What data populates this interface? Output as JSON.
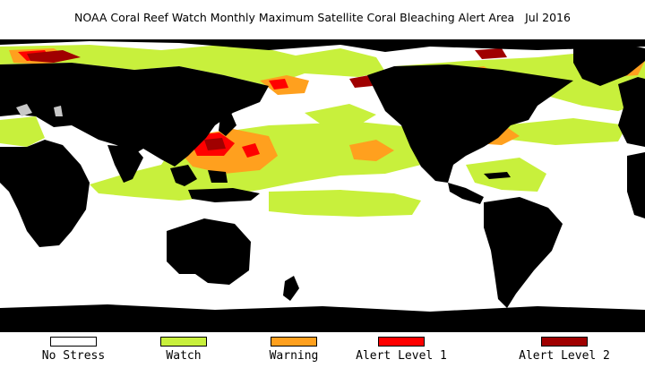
{
  "map": {
    "title": "NOAA Coral Reef Watch Monthly Maximum Satellite Coral Bleaching Alert Area",
    "period": "Jul 2016",
    "colors": {
      "ocean": "#ffffff",
      "land": "#000000",
      "ice": "#c8c8c8"
    }
  },
  "legend": {
    "items": [
      {
        "label": "No Stress",
        "color": "#ffffff"
      },
      {
        "label": "Watch",
        "color": "#c8f03c"
      },
      {
        "label": "Warning",
        "color": "#ffa01e"
      },
      {
        "label": "Alert Level 1",
        "color": "#ff0000"
      },
      {
        "label": "Alert Level 2",
        "color": "#a00000"
      }
    ]
  }
}
